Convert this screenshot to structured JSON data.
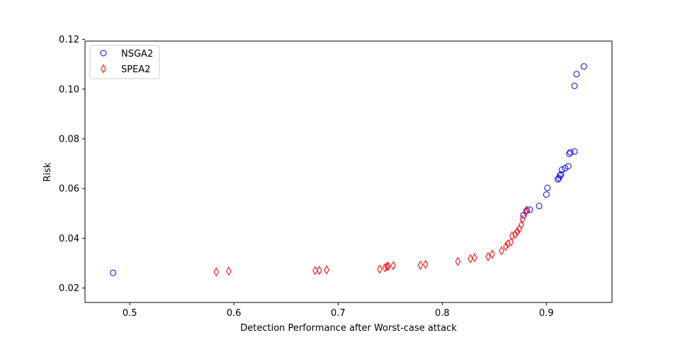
{
  "chart_data": {
    "type": "scatter",
    "title": "",
    "xlabel": "Detection Performance after Worst-case attack",
    "ylabel": "Risk",
    "xlim": [
      0.457,
      0.963
    ],
    "ylim": [
      0.0142,
      0.1193
    ],
    "xticks": [
      0.5,
      0.6,
      0.7,
      0.8,
      0.9
    ],
    "xtick_labels": [
      "0.5",
      "0.6",
      "0.7",
      "0.8",
      "0.9"
    ],
    "yticks": [
      0.02,
      0.04,
      0.06,
      0.08,
      0.1,
      0.12
    ],
    "ytick_labels": [
      "0.02",
      "0.04",
      "0.06",
      "0.08",
      "0.10",
      "0.12"
    ],
    "grid": false,
    "legend_position": "top-left",
    "series": [
      {
        "name": "NSGA2",
        "marker": "circle",
        "color": "#0000ff",
        "points": [
          [
            0.484,
            0.0261
          ],
          [
            0.878,
            0.0492
          ],
          [
            0.881,
            0.0511
          ],
          [
            0.884,
            0.0515
          ],
          [
            0.893,
            0.053
          ],
          [
            0.9,
            0.0576
          ],
          [
            0.901,
            0.0603
          ],
          [
            0.911,
            0.0637
          ],
          [
            0.912,
            0.0642
          ],
          [
            0.913,
            0.0652
          ],
          [
            0.914,
            0.0657
          ],
          [
            0.915,
            0.0676
          ],
          [
            0.918,
            0.0682
          ],
          [
            0.921,
            0.069
          ],
          [
            0.922,
            0.074
          ],
          [
            0.923,
            0.0746
          ],
          [
            0.927,
            0.0749
          ],
          [
            0.927,
            0.1013
          ],
          [
            0.929,
            0.106
          ],
          [
            0.936,
            0.1091
          ]
        ]
      },
      {
        "name": "SPEA2",
        "marker": "thin_diamond",
        "color": "#ff0000",
        "points": [
          [
            0.583,
            0.0265
          ],
          [
            0.595,
            0.0268
          ],
          [
            0.678,
            0.027
          ],
          [
            0.682,
            0.0271
          ],
          [
            0.689,
            0.0273
          ],
          [
            0.74,
            0.0276
          ],
          [
            0.745,
            0.0282
          ],
          [
            0.747,
            0.0286
          ],
          [
            0.748,
            0.0288
          ],
          [
            0.753,
            0.029
          ],
          [
            0.779,
            0.0292
          ],
          [
            0.784,
            0.0295
          ],
          [
            0.815,
            0.0307
          ],
          [
            0.827,
            0.0318
          ],
          [
            0.831,
            0.0322
          ],
          [
            0.844,
            0.0326
          ],
          [
            0.848,
            0.0336
          ],
          [
            0.857,
            0.035
          ],
          [
            0.861,
            0.0367
          ],
          [
            0.863,
            0.0378
          ],
          [
            0.866,
            0.0385
          ],
          [
            0.867,
            0.041
          ],
          [
            0.87,
            0.0415
          ],
          [
            0.872,
            0.0427
          ],
          [
            0.874,
            0.0437
          ],
          [
            0.876,
            0.0455
          ],
          [
            0.877,
            0.0476
          ],
          [
            0.88,
            0.0505
          ],
          [
            0.881,
            0.0513
          ]
        ]
      }
    ]
  }
}
